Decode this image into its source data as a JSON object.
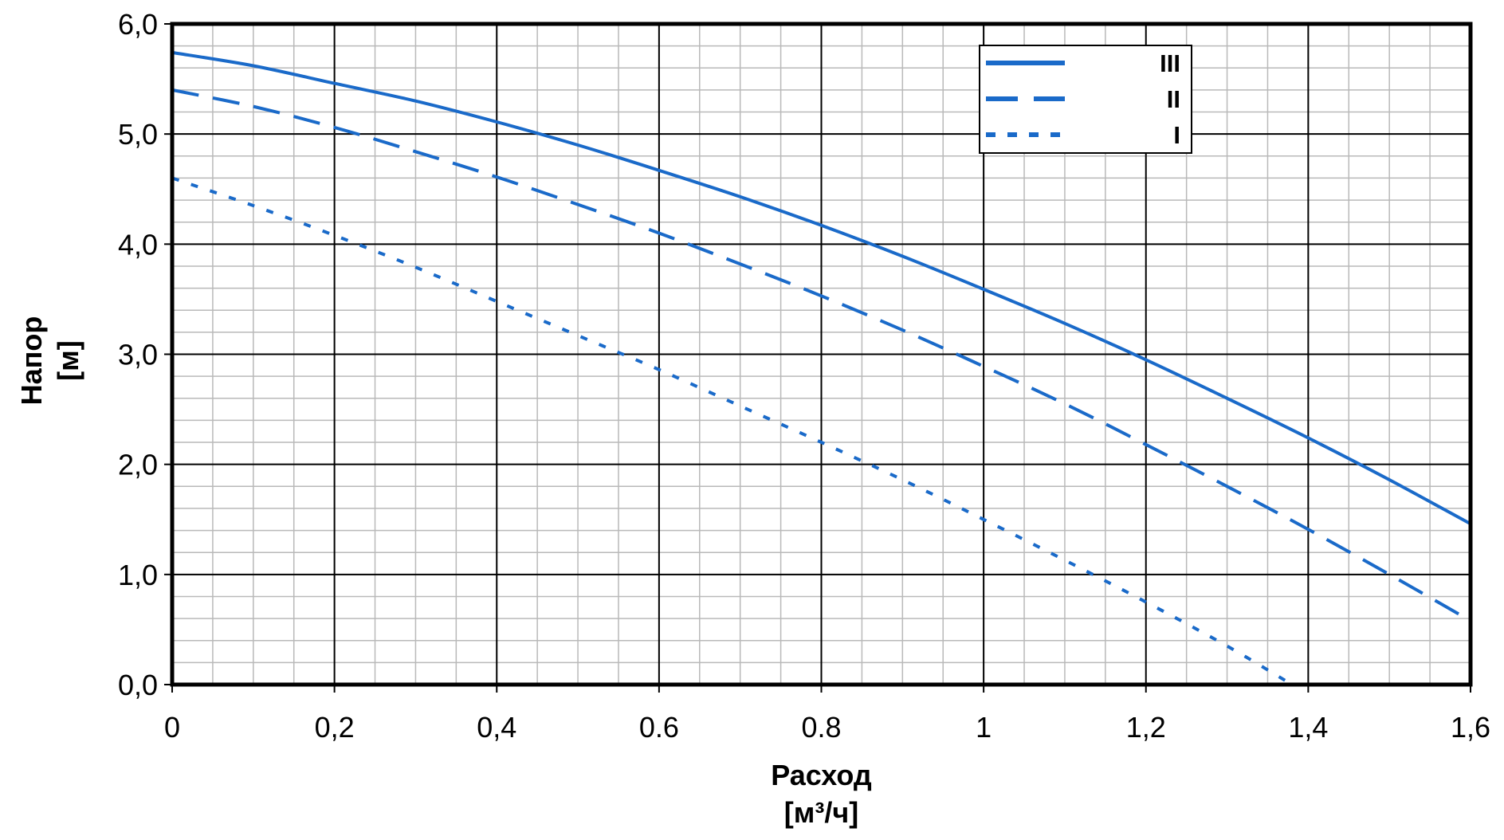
{
  "chart_data": {
    "type": "line",
    "title": "",
    "xlabel_lines": [
      "Расход",
      "[м³/ч]"
    ],
    "ylabel_lines": [
      "Напор",
      "[м]"
    ],
    "xlim": [
      0,
      1.6
    ],
    "ylim": [
      0,
      6.0
    ],
    "x_ticks": [
      {
        "value": 0,
        "label": "0"
      },
      {
        "value": 0.2,
        "label": "0,2"
      },
      {
        "value": 0.4,
        "label": "0,4"
      },
      {
        "value": 0.6,
        "label": "0.6"
      },
      {
        "value": 0.8,
        "label": "0.8"
      },
      {
        "value": 1.0,
        "label": "1"
      },
      {
        "value": 1.2,
        "label": "1,2"
      },
      {
        "value": 1.4,
        "label": "1,4"
      },
      {
        "value": 1.6,
        "label": "1,6"
      }
    ],
    "y_ticks": [
      {
        "value": 0,
        "label": "0,0"
      },
      {
        "value": 1,
        "label": "1,0"
      },
      {
        "value": 2,
        "label": "2,0"
      },
      {
        "value": 3,
        "label": "3,0"
      },
      {
        "value": 4,
        "label": "4,0"
      },
      {
        "value": 5,
        "label": "5,0"
      },
      {
        "value": 6,
        "label": "6,0"
      }
    ],
    "grid": {
      "major": true,
      "minor": true,
      "minor_x_step": 0.05,
      "minor_y_step": 0.2
    },
    "legend_position": "top-right",
    "series": [
      {
        "name": "III",
        "style": "solid",
        "color": "#1a6ac9",
        "x": [
          0,
          0.1,
          0.2,
          0.3,
          0.4,
          0.5,
          0.6,
          0.7,
          0.8,
          0.9,
          1.0,
          1.1,
          1.2,
          1.3,
          1.4,
          1.5,
          1.6
        ],
        "y": [
          5.74,
          5.62,
          5.46,
          5.3,
          5.11,
          4.9,
          4.67,
          4.43,
          4.17,
          3.89,
          3.59,
          3.28,
          2.95,
          2.6,
          2.24,
          1.86,
          1.46
        ]
      },
      {
        "name": "II",
        "style": "dashed",
        "color": "#1a6ac9",
        "x": [
          0,
          0.1,
          0.2,
          0.3,
          0.4,
          0.5,
          0.6,
          0.7,
          0.8,
          0.9,
          1.0,
          1.1,
          1.2,
          1.3,
          1.4,
          1.5,
          1.6
        ],
        "y": [
          5.4,
          5.25,
          5.06,
          4.84,
          4.61,
          4.36,
          4.1,
          3.82,
          3.53,
          3.22,
          2.89,
          2.55,
          2.18,
          1.8,
          1.41,
          1.0,
          0.58
        ]
      },
      {
        "name": "I",
        "style": "dotted",
        "color": "#1a6ac9",
        "x": [
          0,
          0.1,
          0.2,
          0.3,
          0.4,
          0.5,
          0.6,
          0.7,
          0.8,
          0.9,
          1.0,
          1.1,
          1.2,
          1.3,
          1.38
        ],
        "y": [
          4.6,
          4.35,
          4.08,
          3.79,
          3.48,
          3.17,
          2.86,
          2.53,
          2.2,
          1.86,
          1.5,
          1.13,
          0.75,
          0.35,
          0.0
        ]
      }
    ]
  }
}
